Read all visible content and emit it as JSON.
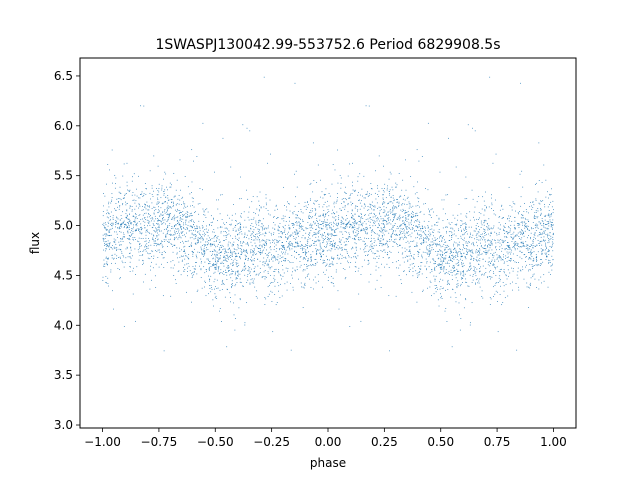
{
  "chart_data": {
    "type": "scatter",
    "title": "1SWASPJ130042.99-553752.6 Period 6829908.5s",
    "xlabel": "phase",
    "ylabel": "flux",
    "xlim": [
      -1.1,
      1.1
    ],
    "ylim": [
      2.97,
      6.68
    ],
    "x_ticks": [
      -1.0,
      -0.75,
      -0.5,
      -0.25,
      0.0,
      0.25,
      0.5,
      0.75,
      1.0
    ],
    "x_tick_labels": [
      "−1.00",
      "−0.75",
      "−0.50",
      "−0.25",
      "0.00",
      "0.25",
      "0.50",
      "0.75",
      "1.00"
    ],
    "y_ticks": [
      3.0,
      3.5,
      4.0,
      4.5,
      5.0,
      5.5,
      6.0,
      6.5
    ],
    "y_tick_labels": [
      "3.0",
      "3.5",
      "4.0",
      "4.5",
      "5.0",
      "5.5",
      "6.0",
      "6.5"
    ],
    "grid": false,
    "marker_color": "#1f77b4",
    "series": [
      {
        "phase_range": [
          -1.0,
          1.0
        ],
        "folded_period_in_phase": 1.0,
        "profile": [
          {
            "phase": 0.0,
            "flux": 4.88
          },
          {
            "phase": 0.05,
            "flux": 4.92
          },
          {
            "phase": 0.1,
            "flux": 4.96
          },
          {
            "phase": 0.15,
            "flux": 5.0
          },
          {
            "phase": 0.2,
            "flux": 4.98
          },
          {
            "phase": 0.25,
            "flux": 5.0
          },
          {
            "phase": 0.3,
            "flux": 5.02
          },
          {
            "phase": 0.35,
            "flux": 4.95
          },
          {
            "phase": 0.4,
            "flux": 4.92
          },
          {
            "phase": 0.45,
            "flux": 4.78
          },
          {
            "phase": 0.5,
            "flux": 4.72
          },
          {
            "phase": 0.55,
            "flux": 4.68
          },
          {
            "phase": 0.6,
            "flux": 4.7
          },
          {
            "phase": 0.65,
            "flux": 4.76
          },
          {
            "phase": 0.7,
            "flux": 4.8
          },
          {
            "phase": 0.75,
            "flux": 4.78
          },
          {
            "phase": 0.8,
            "flux": 4.82
          },
          {
            "phase": 0.85,
            "flux": 4.85
          },
          {
            "phase": 0.9,
            "flux": 4.86
          },
          {
            "phase": 0.95,
            "flux": 4.88
          },
          {
            "phase": 1.0,
            "flux": 4.88
          }
        ],
        "scatter_std": 0.22
      }
    ]
  }
}
